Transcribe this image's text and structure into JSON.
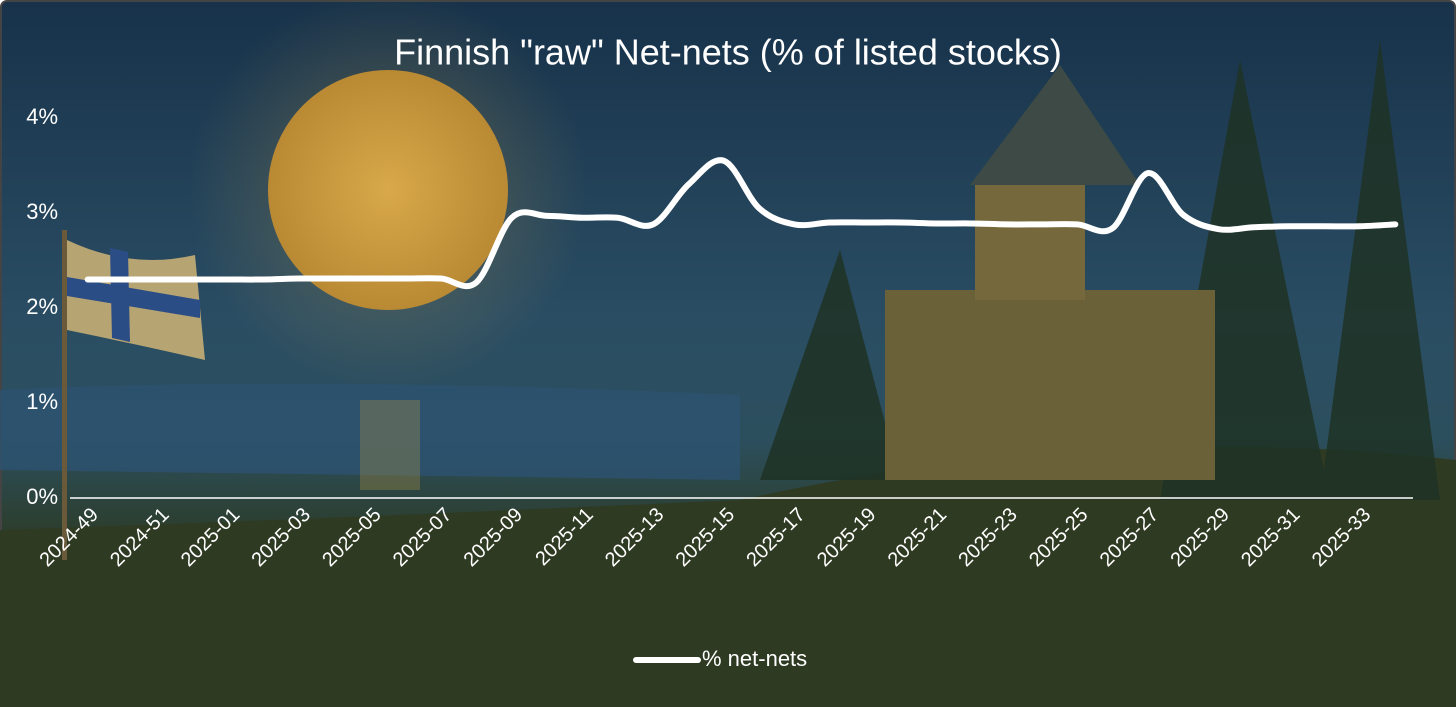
{
  "chart_data": {
    "type": "line",
    "title": "Finnish \"raw\" Net-nets (% of listed stocks)",
    "categories": [
      "2024-49",
      null,
      "2024-51",
      null,
      "2025-01",
      null,
      "2025-03",
      null,
      "2025-05",
      null,
      "2025-07",
      null,
      "2025-09",
      null,
      "2025-11",
      null,
      "2025-13",
      null,
      "2025-15",
      null,
      "2025-17",
      null,
      "2025-19",
      null,
      "2025-21",
      null,
      "2025-23",
      null,
      "2025-25",
      null,
      "2025-27",
      null,
      "2025-29",
      null,
      "2025-31",
      null,
      "2025-33",
      null
    ],
    "series": [
      {
        "name": "% net-nets",
        "color": "#ffffff",
        "values": [
          2.3,
          2.3,
          2.3,
          2.3,
          2.3,
          2.3,
          2.31,
          2.31,
          2.31,
          2.31,
          2.31,
          2.27,
          2.95,
          2.97,
          2.95,
          2.95,
          2.88,
          3.3,
          3.55,
          3.05,
          2.88,
          2.9,
          2.9,
          2.9,
          2.89,
          2.89,
          2.88,
          2.88,
          2.88,
          2.84,
          3.42,
          2.98,
          2.83,
          2.85,
          2.86,
          2.86,
          2.86,
          2.88
        ]
      }
    ],
    "ylim": [
      0,
      4
    ],
    "yticks": [
      {
        "value": 0,
        "label": "0%"
      },
      {
        "value": 1,
        "label": "1%"
      },
      {
        "value": 2,
        "label": "2%"
      },
      {
        "value": 3,
        "label": "3%"
      },
      {
        "value": 4,
        "label": "4%"
      }
    ],
    "grid": false,
    "legend": "bottom"
  }
}
